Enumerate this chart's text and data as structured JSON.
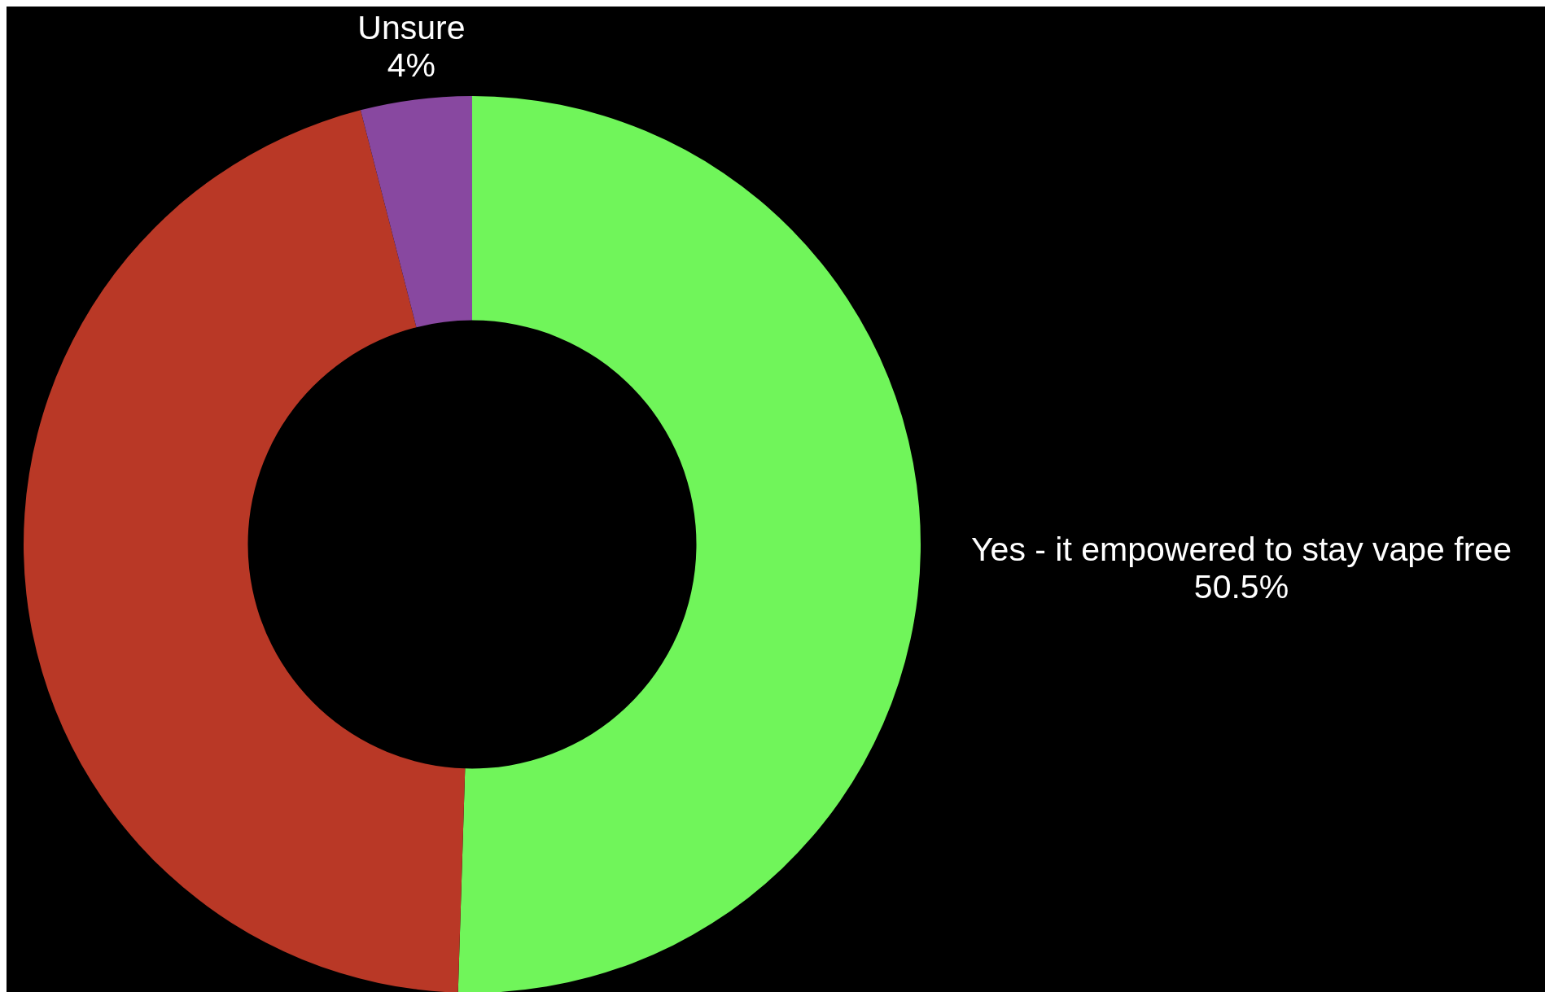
{
  "chart_data": {
    "type": "donut",
    "categories": [
      "Yes - it empowered to stay vape free",
      null,
      "Unsure"
    ],
    "values": [
      50.5,
      45.5,
      4
    ],
    "colors": [
      "#70f55a",
      "#b93826",
      "#8848a0"
    ],
    "value_labels": [
      "50.5%",
      null,
      "4%"
    ]
  }
}
